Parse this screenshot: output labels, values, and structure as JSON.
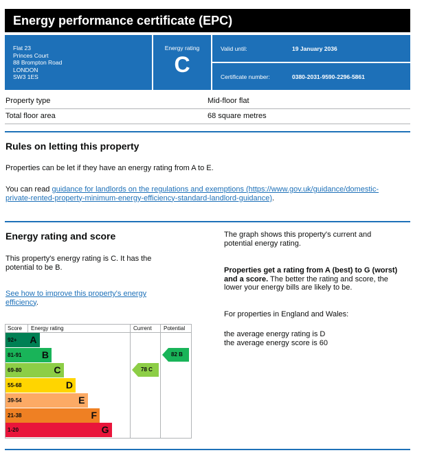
{
  "title": "Energy performance certificate (EPC)",
  "address": [
    "Flat 23",
    "Princes Court",
    "88 Brompton Road",
    "LONDON",
    "SW3 1ES"
  ],
  "energy_rating_label": "Energy rating",
  "energy_rating": "C",
  "valid_until_label": "Valid until:",
  "valid_until": "19 January 2036",
  "certificate_number_label": "Certificate number:",
  "certificate_number": "0380-2031-9590-2296-5861",
  "property": [
    {
      "key": "Property type",
      "value": "Mid-floor flat"
    },
    {
      "key": "Total floor area",
      "value": "68 square metres"
    }
  ],
  "rules": {
    "heading": "Rules on letting this property",
    "para1": "Properties can be let if they have an energy rating from A to E.",
    "para2_prefix": "You can read ",
    "link_text_line1": "guidance for landlords on the regulations and exemptions (https://www.gov.uk/guidance/domestic-",
    "link_text_line2": "private-rented-property-minimum-energy-efficiency-standard-landlord-guidance)",
    "para2_suffix": "."
  },
  "score": {
    "heading": "Energy rating and score",
    "line1": "This property's energy rating is C. It has the",
    "line2": "potential to be B.",
    "improve_link_line1": "See how to improve this property's energy",
    "improve_link_line2": "efficiency",
    "improve_suffix": "."
  },
  "right_col": {
    "graph_line1": "The graph shows this property's current and",
    "graph_line2": "potential energy rating.",
    "bold_line1": "Properties get a rating from A (best) to G (worst)",
    "bold_line2": "and a score.",
    "normal_after_bold": " The better the rating and score, the",
    "normal_line3": "lower your energy bills are likely to be.",
    "ew_line": "For properties in England and Wales:",
    "avg_rating": "the average energy rating is D",
    "avg_score": "the average energy score is 60"
  },
  "chart_data": {
    "type": "bar",
    "headers": {
      "score": "Score",
      "rating": "Energy rating",
      "current": "Current",
      "potential": "Potential"
    },
    "bands": [
      {
        "range": "92+",
        "letter": "A",
        "color": "#008054",
        "level": 1
      },
      {
        "range": "81-91",
        "letter": "B",
        "color": "#19b459",
        "level": 2
      },
      {
        "range": "69-80",
        "letter": "C",
        "color": "#8dce46",
        "level": 3
      },
      {
        "range": "55-68",
        "letter": "D",
        "color": "#ffd500",
        "level": 4
      },
      {
        "range": "39-54",
        "letter": "E",
        "color": "#fcaa65",
        "level": 5
      },
      {
        "range": "21-38",
        "letter": "F",
        "color": "#ef8023",
        "level": 6
      },
      {
        "range": "1-20",
        "letter": "G",
        "color": "#e9153b",
        "level": 7
      }
    ],
    "current": {
      "score": 78,
      "letter": "C",
      "label": "78 C",
      "color": "#8dce46"
    },
    "potential": {
      "score": 82,
      "letter": "B",
      "label": "82 B",
      "color": "#19b459"
    }
  }
}
